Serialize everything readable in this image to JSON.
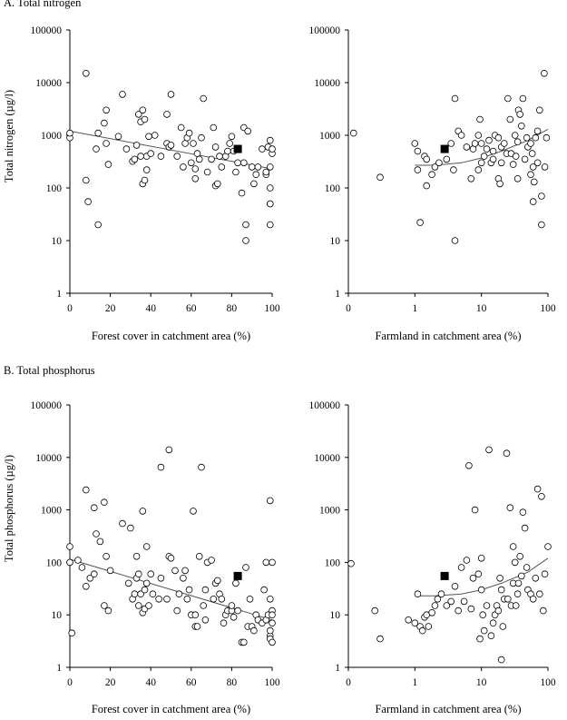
{
  "sections": {
    "a_title": "A. Total nitrogen",
    "b_title": "B. Total phosphorus"
  },
  "colors": {
    "ink": "#000000",
    "marker_fill": "#ffffff",
    "trend": "#555555"
  },
  "chart_data": [
    {
      "type": "scatter",
      "id": "n_forest",
      "ylabel": "Total nitrogen (µg/l)",
      "xlabel": "Forest cover in catchment area (%)",
      "xscale": "linear",
      "xlim": [
        0,
        100
      ],
      "xticks": [
        0,
        20,
        40,
        60,
        80,
        100
      ],
      "yscale": "log",
      "ylim": [
        1,
        100000
      ],
      "yticks": [
        "1",
        "10",
        "100",
        "1000",
        "10000",
        "100000"
      ],
      "points": [
        [
          0,
          900
        ],
        [
          0,
          1100
        ],
        [
          8,
          15000
        ],
        [
          8,
          140
        ],
        [
          9,
          55
        ],
        [
          13,
          550
        ],
        [
          14,
          20
        ],
        [
          14,
          1100
        ],
        [
          17,
          1700
        ],
        [
          18,
          700
        ],
        [
          18,
          3000
        ],
        [
          19,
          280
        ],
        [
          24,
          950
        ],
        [
          26,
          6000
        ],
        [
          28,
          550
        ],
        [
          31,
          320
        ],
        [
          32,
          350
        ],
        [
          33,
          650
        ],
        [
          34,
          2500
        ],
        [
          35,
          400
        ],
        [
          35,
          1800
        ],
        [
          36,
          3000
        ],
        [
          36,
          120
        ],
        [
          37,
          140
        ],
        [
          37,
          2000
        ],
        [
          38,
          220
        ],
        [
          38,
          400
        ],
        [
          39,
          950
        ],
        [
          40,
          450
        ],
        [
          42,
          1000
        ],
        [
          45,
          400
        ],
        [
          48,
          2500
        ],
        [
          48,
          700
        ],
        [
          49,
          600
        ],
        [
          50,
          6000
        ],
        [
          50,
          650
        ],
        [
          53,
          400
        ],
        [
          55,
          1400
        ],
        [
          56,
          250
        ],
        [
          57,
          700
        ],
        [
          58,
          900
        ],
        [
          59,
          1100
        ],
        [
          60,
          300
        ],
        [
          61,
          700
        ],
        [
          62,
          230
        ],
        [
          62,
          150
        ],
        [
          63,
          450
        ],
        [
          64,
          350
        ],
        [
          65,
          900
        ],
        [
          66,
          5000
        ],
        [
          68,
          200
        ],
        [
          70,
          350
        ],
        [
          71,
          1400
        ],
        [
          72,
          600
        ],
        [
          72,
          110
        ],
        [
          73,
          120
        ],
        [
          74,
          400
        ],
        [
          75,
          250
        ],
        [
          77,
          400
        ],
        [
          78,
          500
        ],
        [
          79,
          700
        ],
        [
          80,
          950
        ],
        [
          81,
          500
        ],
        [
          82,
          200
        ],
        [
          83,
          300
        ],
        [
          85,
          80
        ],
        [
          86,
          1400
        ],
        [
          86,
          300
        ],
        [
          87,
          20
        ],
        [
          87,
          10
        ],
        [
          88,
          1200
        ],
        [
          90,
          250
        ],
        [
          91,
          120
        ],
        [
          92,
          180
        ],
        [
          93,
          250
        ],
        [
          95,
          550
        ],
        [
          97,
          180
        ],
        [
          97,
          200
        ],
        [
          98,
          600
        ],
        [
          99,
          250
        ],
        [
          99,
          800
        ],
        [
          99,
          50
        ],
        [
          99,
          50
        ],
        [
          99,
          20
        ],
        [
          99,
          100
        ],
        [
          100,
          450
        ],
        [
          100,
          550
        ]
      ],
      "mean_point": [
        83,
        550
      ],
      "trend": {
        "type": "line",
        "from": [
          0,
          1200
        ],
        "to": [
          100,
          230
        ]
      }
    },
    {
      "type": "scatter",
      "id": "n_farm",
      "ylabel": "",
      "xlabel": "Farmland in catchment area (%)",
      "xscale": "log",
      "xlim": [
        0.1,
        100
      ],
      "xtick_values": [
        0.1,
        1,
        10,
        100
      ],
      "xtick_labels": [
        "0",
        "1",
        "10",
        "100"
      ],
      "yscale": "log",
      "ylim": [
        1,
        100000
      ],
      "yticks": [
        "1",
        "10",
        "100",
        "1000",
        "10000",
        "100000"
      ],
      "points": [
        [
          0.12,
          1100
        ],
        [
          0.3,
          160
        ],
        [
          1,
          700
        ],
        [
          1.1,
          500
        ],
        [
          1.1,
          220
        ],
        [
          1.2,
          22
        ],
        [
          1.4,
          400
        ],
        [
          1.5,
          350
        ],
        [
          1.5,
          110
        ],
        [
          1.8,
          180
        ],
        [
          2,
          250
        ],
        [
          2.3,
          300
        ],
        [
          3,
          350
        ],
        [
          3.5,
          700
        ],
        [
          3.8,
          220
        ],
        [
          4,
          10
        ],
        [
          4,
          5000
        ],
        [
          4.5,
          1200
        ],
        [
          5,
          1000
        ],
        [
          6,
          600
        ],
        [
          7,
          150
        ],
        [
          7.5,
          550
        ],
        [
          8,
          700
        ],
        [
          9,
          220
        ],
        [
          9,
          1000
        ],
        [
          9.5,
          2000
        ],
        [
          10,
          700
        ],
        [
          10,
          300
        ],
        [
          11,
          400
        ],
        [
          12,
          550
        ],
        [
          13,
          800
        ],
        [
          14,
          300
        ],
        [
          15,
          350
        ],
        [
          15,
          500
        ],
        [
          16,
          1000
        ],
        [
          18,
          900
        ],
        [
          18,
          150
        ],
        [
          19,
          120
        ],
        [
          20,
          600
        ],
        [
          20,
          300
        ],
        [
          22,
          700
        ],
        [
          24,
          450
        ],
        [
          25,
          5000
        ],
        [
          27,
          2000
        ],
        [
          28,
          450
        ],
        [
          30,
          280
        ],
        [
          32,
          1000
        ],
        [
          33,
          400
        ],
        [
          35,
          750
        ],
        [
          35,
          150
        ],
        [
          36,
          3000
        ],
        [
          38,
          2500
        ],
        [
          40,
          1500
        ],
        [
          42,
          5000
        ],
        [
          45,
          350
        ],
        [
          48,
          900
        ],
        [
          50,
          600
        ],
        [
          55,
          700
        ],
        [
          55,
          180
        ],
        [
          58,
          450
        ],
        [
          60,
          250
        ],
        [
          60,
          55
        ],
        [
          62,
          130
        ],
        [
          65,
          900
        ],
        [
          70,
          1200
        ],
        [
          70,
          300
        ],
        [
          75,
          3000
        ],
        [
          80,
          70
        ],
        [
          80,
          20
        ],
        [
          88,
          15000
        ],
        [
          90,
          250
        ],
        [
          95,
          900
        ]
      ],
      "mean_point": [
        2.8,
        550
      ],
      "trend": {
        "type": "curve",
        "points": [
          [
            1,
            270
          ],
          [
            2,
            270
          ],
          [
            5,
            300
          ],
          [
            10,
            370
          ],
          [
            20,
            500
          ],
          [
            50,
            800
          ],
          [
            100,
            1300
          ]
        ]
      }
    },
    {
      "type": "scatter",
      "id": "p_forest",
      "ylabel": "Total phosphorus (µg/l)",
      "xlabel": "Forest cover in catchment area (%)",
      "xscale": "linear",
      "xlim": [
        0,
        100
      ],
      "xticks": [
        0,
        20,
        40,
        60,
        80,
        100
      ],
      "yscale": "log",
      "ylim": [
        1,
        100000
      ],
      "yticks": [
        "1",
        "10",
        "100",
        "1000",
        "10000",
        "100000"
      ],
      "points": [
        [
          0,
          200
        ],
        [
          0,
          100
        ],
        [
          1,
          4.5
        ],
        [
          4,
          110
        ],
        [
          6,
          80
        ],
        [
          8,
          2400
        ],
        [
          8,
          35
        ],
        [
          10,
          50
        ],
        [
          12,
          1100
        ],
        [
          12,
          60
        ],
        [
          13,
          350
        ],
        [
          15,
          250
        ],
        [
          17,
          15
        ],
        [
          17,
          1400
        ],
        [
          18,
          130
        ],
        [
          19,
          12
        ],
        [
          20,
          70
        ],
        [
          26,
          550
        ],
        [
          29,
          40
        ],
        [
          30,
          450
        ],
        [
          31,
          20
        ],
        [
          32,
          25
        ],
        [
          33,
          130
        ],
        [
          33,
          50
        ],
        [
          34,
          15
        ],
        [
          34,
          60
        ],
        [
          35,
          25
        ],
        [
          36,
          950
        ],
        [
          36,
          11
        ],
        [
          37,
          30
        ],
        [
          37,
          13
        ],
        [
          38,
          200
        ],
        [
          38,
          40
        ],
        [
          39,
          15
        ],
        [
          40,
          60
        ],
        [
          41,
          25
        ],
        [
          44,
          20
        ],
        [
          45,
          6500
        ],
        [
          45,
          50
        ],
        [
          48,
          20
        ],
        [
          49,
          14000
        ],
        [
          49,
          130
        ],
        [
          50,
          120
        ],
        [
          52,
          70
        ],
        [
          53,
          12
        ],
        [
          54,
          25
        ],
        [
          56,
          50
        ],
        [
          57,
          70
        ],
        [
          58,
          20
        ],
        [
          59,
          30
        ],
        [
          60,
          10
        ],
        [
          61,
          950
        ],
        [
          62,
          10
        ],
        [
          62,
          6
        ],
        [
          63,
          6
        ],
        [
          64,
          130
        ],
        [
          65,
          6500
        ],
        [
          66,
          15
        ],
        [
          67,
          8
        ],
        [
          67,
          30
        ],
        [
          68,
          100
        ],
        [
          70,
          110
        ],
        [
          71,
          20
        ],
        [
          72,
          40
        ],
        [
          73,
          45
        ],
        [
          74,
          25
        ],
        [
          75,
          20
        ],
        [
          76,
          7
        ],
        [
          77,
          10
        ],
        [
          78,
          12
        ],
        [
          80,
          12
        ],
        [
          80,
          15
        ],
        [
          81,
          9
        ],
        [
          82,
          40
        ],
        [
          83,
          12
        ],
        [
          85,
          3
        ],
        [
          86,
          3
        ],
        [
          87,
          80
        ],
        [
          88,
          6
        ],
        [
          89,
          20
        ],
        [
          90,
          6
        ],
        [
          91,
          5
        ],
        [
          92,
          10
        ],
        [
          93,
          8
        ],
        [
          95,
          7
        ],
        [
          96,
          30
        ],
        [
          97,
          8
        ],
        [
          97,
          100
        ],
        [
          98,
          10
        ],
        [
          99,
          4
        ],
        [
          99,
          3.5
        ],
        [
          99,
          5
        ],
        [
          99,
          1500
        ],
        [
          99,
          20
        ],
        [
          100,
          100
        ],
        [
          100,
          12
        ],
        [
          100,
          7
        ],
        [
          100,
          10
        ],
        [
          100,
          3
        ]
      ],
      "mean_point": [
        83,
        55
      ],
      "trend": {
        "type": "line",
        "from": [
          0,
          115
        ],
        "to": [
          100,
          8
        ]
      }
    },
    {
      "type": "scatter",
      "id": "p_farm",
      "ylabel": "",
      "xlabel": "Farmland in catchment area (%)",
      "xscale": "log",
      "xlim": [
        0.1,
        100
      ],
      "xtick_values": [
        0.1,
        1,
        10,
        100
      ],
      "xtick_labels": [
        "0",
        "1",
        "10",
        "100"
      ],
      "yscale": "log",
      "ylim": [
        1,
        100000
      ],
      "yticks": [
        "1",
        "10",
        "100",
        "1000",
        "10000",
        "100000"
      ],
      "points": [
        [
          0.11,
          95
        ],
        [
          0.25,
          12
        ],
        [
          0.3,
          3.5
        ],
        [
          0.8,
          8
        ],
        [
          1,
          7
        ],
        [
          1.1,
          25
        ],
        [
          1.2,
          6
        ],
        [
          1.3,
          5
        ],
        [
          1.4,
          9
        ],
        [
          1.5,
          10
        ],
        [
          1.6,
          6
        ],
        [
          1.8,
          11
        ],
        [
          2,
          15
        ],
        [
          2.2,
          20
        ],
        [
          2.5,
          25
        ],
        [
          3,
          15
        ],
        [
          3.5,
          18
        ],
        [
          4,
          35
        ],
        [
          4.5,
          12
        ],
        [
          5,
          80
        ],
        [
          5.5,
          18
        ],
        [
          6,
          110
        ],
        [
          6.5,
          7000
        ],
        [
          7,
          13
        ],
        [
          7.5,
          50
        ],
        [
          8,
          1000
        ],
        [
          9,
          60
        ],
        [
          9.5,
          3.5
        ],
        [
          10,
          120
        ],
        [
          10,
          30
        ],
        [
          10.5,
          10
        ],
        [
          11,
          5
        ],
        [
          12,
          15
        ],
        [
          13,
          14000
        ],
        [
          14,
          4
        ],
        [
          15,
          7
        ],
        [
          16,
          10
        ],
        [
          17,
          15
        ],
        [
          18,
          12
        ],
        [
          19,
          50
        ],
        [
          20,
          30
        ],
        [
          20,
          1.4
        ],
        [
          21,
          6
        ],
        [
          22,
          20
        ],
        [
          24,
          12000
        ],
        [
          25,
          20
        ],
        [
          27,
          1100
        ],
        [
          28,
          15
        ],
        [
          30,
          200
        ],
        [
          30,
          40
        ],
        [
          32,
          100
        ],
        [
          33,
          15
        ],
        [
          35,
          25
        ],
        [
          36,
          40
        ],
        [
          38,
          130
        ],
        [
          40,
          55
        ],
        [
          42,
          900
        ],
        [
          45,
          450
        ],
        [
          48,
          80
        ],
        [
          50,
          30
        ],
        [
          55,
          25
        ],
        [
          60,
          20
        ],
        [
          65,
          50
        ],
        [
          70,
          2500
        ],
        [
          75,
          25
        ],
        [
          80,
          1800
        ],
        [
          85,
          12
        ],
        [
          90,
          60
        ],
        [
          100,
          200
        ]
      ],
      "mean_point": [
        2.8,
        55
      ],
      "trend": {
        "type": "curve",
        "points": [
          [
            1,
            23
          ],
          [
            2,
            23
          ],
          [
            5,
            25
          ],
          [
            10,
            30
          ],
          [
            20,
            40
          ],
          [
            50,
            65
          ],
          [
            100,
            120
          ]
        ]
      }
    }
  ]
}
